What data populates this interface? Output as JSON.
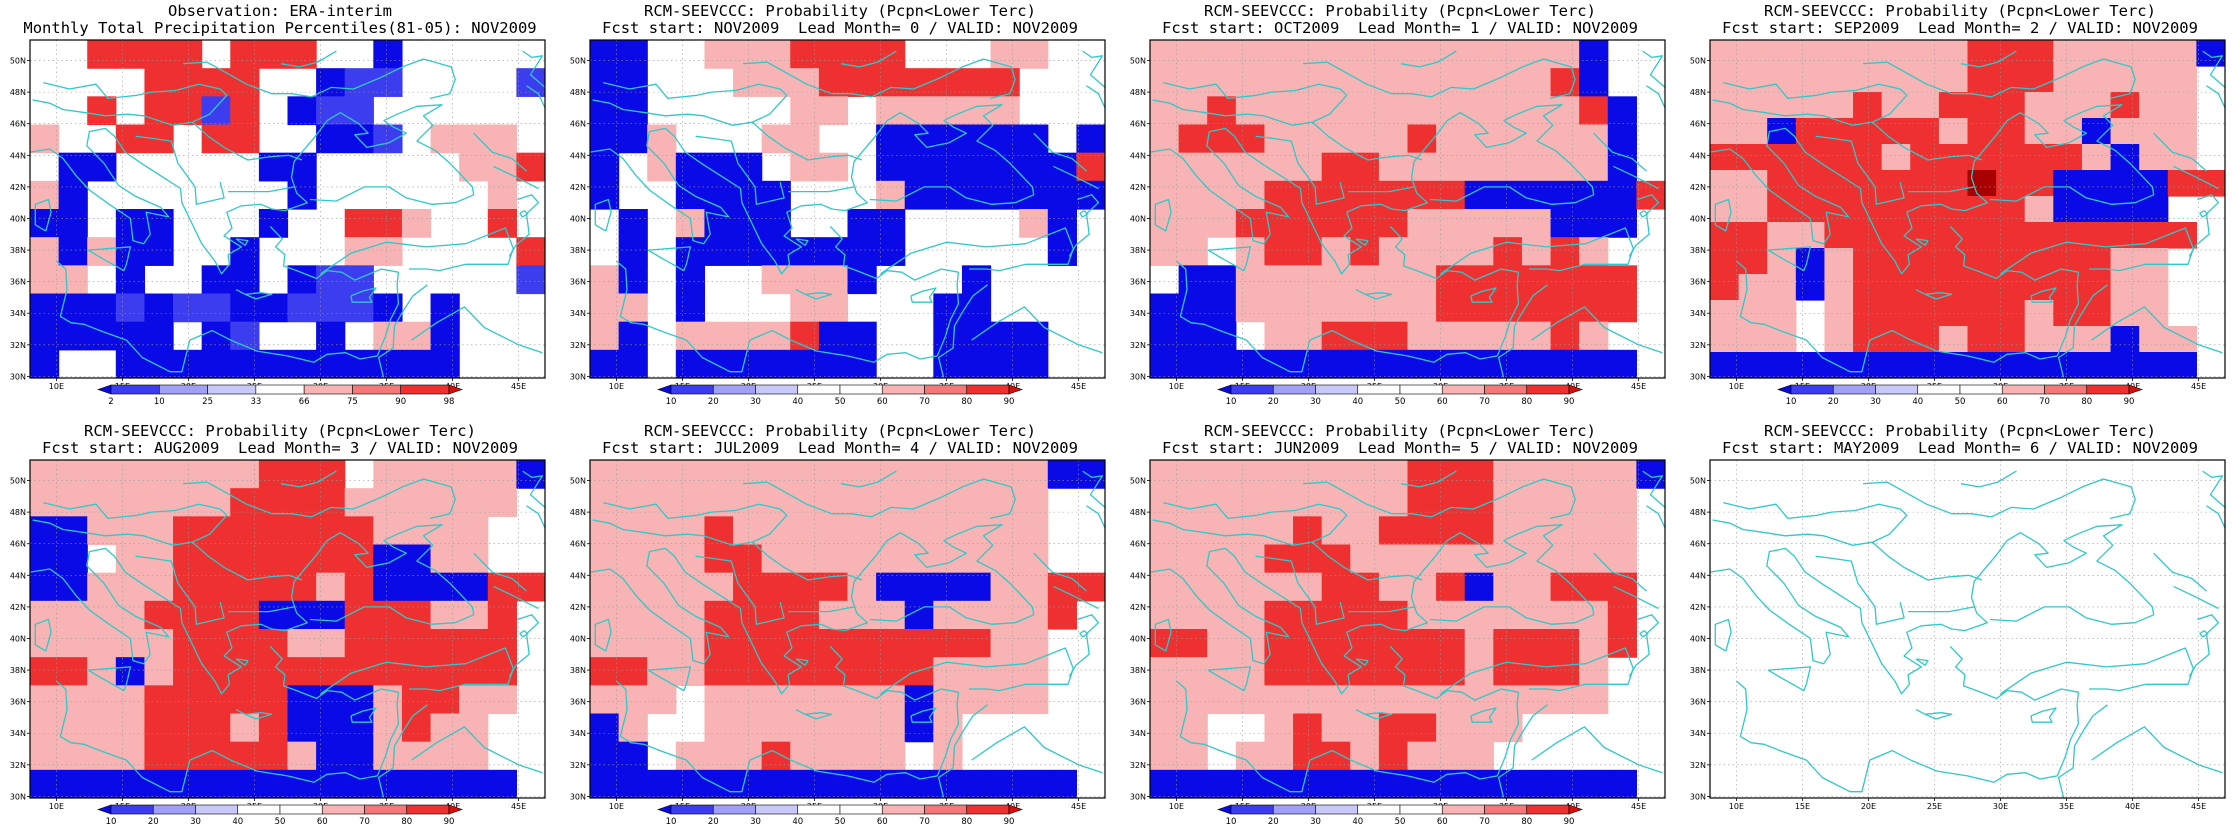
{
  "colors": {
    "b4": "#0a0ae6",
    "b3": "#3d3df0",
    "b2": "#a0a0f6",
    "b1": "#c8c8fa",
    "w": "#ffffff",
    "r1": "#f8b4b4",
    "r2": "#f47878",
    "r3": "#ee3030",
    "r4": "#dc0c0c",
    "r5": "#a80000",
    "coast": "#30c8c8"
  },
  "axes": {
    "lon_ticks": [
      "10E",
      "15E",
      "20E",
      "25E",
      "30E",
      "35E",
      "40E",
      "45E"
    ],
    "lat_ticks": [
      "30N",
      "32N",
      "34N",
      "36N",
      "38N",
      "40N",
      "42N",
      "44N",
      "46N",
      "48N",
      "50N"
    ]
  },
  "colorbars": {
    "obs": {
      "labels": [
        "2",
        "10",
        "25",
        "33",
        "66",
        "75",
        "90",
        "98"
      ],
      "colors": [
        "b4",
        "b3",
        "b2",
        "b1",
        "w",
        "r1",
        "r2",
        "r3",
        "r4"
      ]
    },
    "prob": {
      "labels": [
        "10",
        "20",
        "30",
        "40",
        "50",
        "60",
        "70",
        "80",
        "90"
      ],
      "colors": [
        "b4",
        "b3",
        "b2",
        "b1",
        "w",
        "w",
        "r1",
        "r2",
        "r3",
        "r4"
      ]
    }
  },
  "panels": [
    {
      "title1": "Observation: ERA-interim",
      "title2": "Monthly Total Precipitation Percentiles(81-05): NOV2009",
      "cbar": "obs",
      "grid": [
        "..RRRR.RRR..B.....",
        "....RRRR..BAA....A",
        "..R.RRAR.BAA......",
        "r..RR.RR..BBA.rrr.",
        ".BB.....BB.....rrR",
        "rB.......B......r.",
        "BB.BB...B..RRr..R.",
        "rBrBB..B...rr....R",
        "rr.B..BB.BAA.....A",
        "BBBABAABBAAAB.B...",
        "BBBBB.BA..B.rrB...",
        "B..BBBBBBBBBBBB..."
      ]
    },
    {
      "title1": "RCM-SEEVCCC: Probability (Pcpn<Lower Terc)",
      "title2": "Fcst start: NOV2009  Lead Month= 0 / VALID: NOV2009",
      "cbar": "prob",
      "grid": [
        "BB..rrrRRRR...rr..",
        "BB...rrrRRRRRRR...",
        "BB.....rr.rrrrr...",
        "BBr...rr..BBBBBB.B",
        "B.rBBB.rr.BBBBBBBR",
        "B..BBBB...rBBBBBBB",
        ".B.rBBB..BB....rB.",
        ".B.BBBBBBBB.....B.",
        "rB.B..rrrB...B....",
        "rr.B...rr...BB....",
        "rB.rrrrRBB..BBBB..",
        "BB.BBBBBBB..BBBB.."
      ]
    },
    {
      "title1": "RCM-SEEVCCC: Probability (Pcpn<Lower Terc)",
      "title2": "Fcst start: OCT2009  Lead Month= 1 / VALID: NOV2009",
      "cbar": "prob",
      "grid": [
        "rrrrrrrrrrrrrrrB..",
        "rrrrrrrrrrrrrrRB..",
        "rrRrrrrrrrrrrrrRB.",
        "rRRRrrrrrRrrrrrrB.",
        "rrrrrrRRrrrrrrrrB.",
        "rrrrRRRRRRRBBBBBBR",
        "rrrRRRRRRrrrrrBBB.",
        "rr.rRRrRrrrrRrRr..",
        ".BBrrrrrrrRRRRRRR.",
        "BBBrrrrrrrRRRRRRR.",
        "BBB.rrRRRrrrrrRr..",
        "BBBBBBBBBBBBBBBBB."
      ]
    },
    {
      "title1": "RCM-SEEVCCC: Probability (Pcpn<Lower Terc)",
      "title2": "Fcst start: SEP2009  Lead Month= 2 / VALID: NOV2009",
      "cbar": "prob",
      "grid": [
        "rrrrrrrrrRRRrrrrrB",
        "rrrrrrrrrRRRrrrrr.",
        "rrrrrRrrRRRrrrRrr.",
        "rrBRRRRRrRRrrBrrr.",
        "RRRRRRrRRRRRRrBrr.",
        "rrRRRRRRRDRRBBBBRR",
        "rrRRRRRRRRRrBBBB..",
        "RRrrRRRRRRRRRRRRR.",
        "RRrBrRRRRRRRRRrr..",
        "RrrBrRRRRRRRRRrr..",
        "rrr.rRRRRRRrRRrr..",
        "rrr.rRRRrRRrrrBrr.",
        "BBBBBBBBBBBBBBBBB."
      ]
    },
    {
      "title1": "RCM-SEEVCCC: Probability (Pcpn<Lower Terc)",
      "title2": "Fcst start: AUG2009  Lead Month= 3 / VALID: NOV2009",
      "cbar": "prob",
      "grid": [
        "rrrrrrrrRRR.rrrrrB",
        "rrrrrrrRRRRrrrrrr.",
        "BBrrrRRRRRRRrrrr..",
        "BB.rrRRRRRRRBBrr..",
        "BBrrrRRRRRrRBBBBRR",
        "rrrrRRRRBBBRRRrrR.",
        "rrrrrRRRRrrRRRRRR.",
        "RRrBrRRRRRRRRRRRR.",
        "rrrrRRRRRBBBrRRrr.",
        "rrrrRRRrRBBBrRrr..",
        "rrrrRRRRRrBBrrrr..",
        "BBBBBBBBBBBBBBBBB."
      ]
    },
    {
      "title1": "RCM-SEEVCCC: Probability (Pcpn<Lower Terc)",
      "title2": "Fcst start: JUL2009  Lead Month= 4 / VALID: NOV2009",
      "cbar": "prob",
      "grid": [
        "rrrrrrrrrrrrrrrrBB",
        "rrrrrrrrrrrrrrrr..",
        "rrrrRrrrrrrrrrrr..",
        "rrrrRRrrrrrrrrrr..",
        "rrrrrRRRRrBBBBrrRR",
        "rrrrRRRRrrrBrrrrR.",
        "rrrrRRRRRRRRRRrr..",
        "RRrrRRRRRRRRrrrr..",
        "rrr.rrrrrrrBrrrr..",
        "Br..rrrrrrrBr.....",
        "BB.rrrRrrrr.r.....",
        "BBBBBBBBBBBBBBBBB."
      ]
    },
    {
      "title1": "RCM-SEEVCCC: Probability (Pcpn<Lower Terc)",
      "title2": "Fcst start: JUN2009  Lead Month= 5 / VALID: NOV2009",
      "cbar": "prob",
      "grid": [
        "rrrrrrrrrRRRrrrrrB",
        "rrrrrrrrrRRRrrrrr.",
        "rrrrrRrrRRRRrrrrr.",
        "rrrrRRRrrrrrrrrrr.",
        "rrrrrrRRrrRBrrRRR.",
        "rrrrRRRRRrrrrrrrR.",
        "RRrrRRRRRRRrRRRrR.",
        "rrrrRRRRRRRrRRRr..",
        "rrrrrrrrrrrrrrrr..",
        "rr..rRrrRRrrr.....",
        "rr.rrRRrRrrr......",
        "BBBBBBBBBBBBBBBBB."
      ]
    },
    {
      "title1": "RCM-SEEVCCC: Probability (Pcpn<Lower Terc)",
      "title2": "Fcst start: MAY2009  Lead Month= 6 / VALID: NOV2009",
      "cbar": null,
      "grid": []
    }
  ],
  "chart_data": [
    {
      "type": "heatmap",
      "title": "Observation: ERA-interim",
      "subtitle": "Monthly Total Precipitation Percentiles(81-05): NOV2009",
      "xlim": [
        "8E",
        "47E"
      ],
      "ylim": [
        "30N",
        "51N"
      ],
      "colorbar": [
        "2",
        "10",
        "25",
        "33",
        "66",
        "75",
        "90",
        "98"
      ]
    },
    {
      "type": "heatmap",
      "title": "RCM-SEEVCCC: Probability (Pcpn<Lower Terc)",
      "subtitle": "Fcst start: NOV2009  Lead Month= 0 / VALID: NOV2009",
      "colorbar": [
        "10",
        "20",
        "30",
        "40",
        "50",
        "60",
        "70",
        "80",
        "90"
      ]
    },
    {
      "type": "heatmap",
      "title": "RCM-SEEVCCC: Probability (Pcpn<Lower Terc)",
      "subtitle": "Fcst start: OCT2009  Lead Month= 1 / VALID: NOV2009",
      "colorbar": [
        "10",
        "20",
        "30",
        "40",
        "50",
        "60",
        "70",
        "80",
        "90"
      ]
    },
    {
      "type": "heatmap",
      "title": "RCM-SEEVCCC: Probability (Pcpn<Lower Terc)",
      "subtitle": "Fcst start: SEP2009  Lead Month= 2 / VALID: NOV2009",
      "colorbar": [
        "10",
        "20",
        "30",
        "40",
        "50",
        "60",
        "70",
        "80",
        "90"
      ]
    },
    {
      "type": "heatmap",
      "title": "RCM-SEEVCCC: Probability (Pcpn<Lower Terc)",
      "subtitle": "Fcst start: AUG2009  Lead Month= 3 / VALID: NOV2009",
      "colorbar": [
        "10",
        "20",
        "30",
        "40",
        "50",
        "60",
        "70",
        "80",
        "90"
      ]
    },
    {
      "type": "heatmap",
      "title": "RCM-SEEVCCC: Probability (Pcpn<Lower Terc)",
      "subtitle": "Fcst start: JUL2009  Lead Month= 4 / VALID: NOV2009",
      "colorbar": [
        "10",
        "20",
        "30",
        "40",
        "50",
        "60",
        "70",
        "80",
        "90"
      ]
    },
    {
      "type": "heatmap",
      "title": "RCM-SEEVCCC: Probability (Pcpn<Lower Terc)",
      "subtitle": "Fcst start: JUN2009  Lead Month= 5 / VALID: NOV2009",
      "colorbar": [
        "10",
        "20",
        "30",
        "40",
        "50",
        "60",
        "70",
        "80",
        "90"
      ]
    },
    {
      "type": "heatmap",
      "title": "RCM-SEEVCCC: Probability (Pcpn<Lower Terc)",
      "subtitle": "Fcst start: MAY2009  Lead Month= 6 / VALID: NOV2009"
    }
  ]
}
